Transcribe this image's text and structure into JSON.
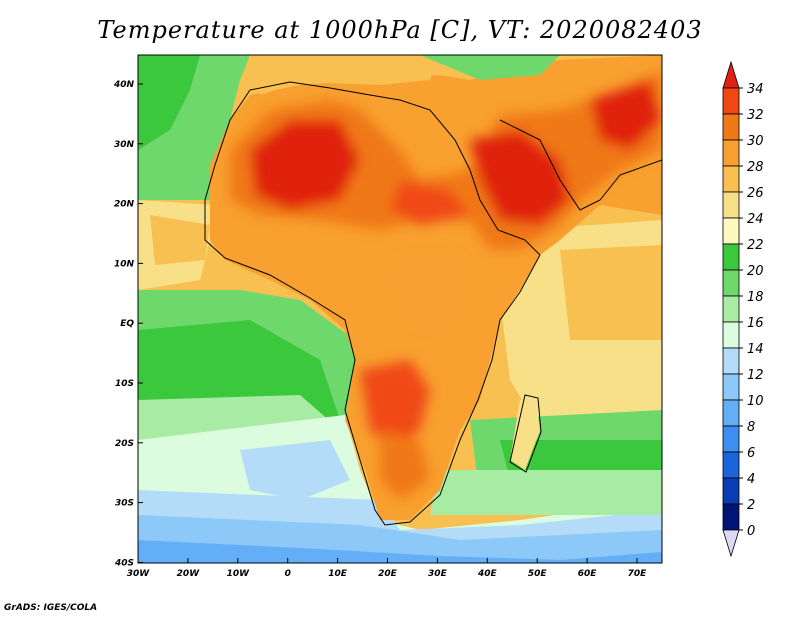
{
  "title": "Temperature at 1000hPa [C], VT: 2020082403",
  "credit": "GrADS: IGES/COLA",
  "x_ticks": [
    "30W",
    "20W",
    "10W",
    "0",
    "10E",
    "20E",
    "30E",
    "40E",
    "50E",
    "60E",
    "70E"
  ],
  "y_ticks": [
    "40N",
    "30N",
    "20N",
    "10N",
    "EQ",
    "10S",
    "20S",
    "30S",
    "40S"
  ],
  "colorbar": {
    "labels": [
      "34",
      "32",
      "30",
      "28",
      "26",
      "24",
      "22",
      "20",
      "18",
      "16",
      "14",
      "12",
      "10",
      "8",
      "6",
      "4",
      "2",
      "0"
    ],
    "colors": [
      "#e02010",
      "#f04812",
      "#f07816",
      "#f8a030",
      "#f8c050",
      "#f8e088",
      "#fff8c0",
      "#3cc83c",
      "#6ed86c",
      "#a8eca4",
      "#dcfce0",
      "#b4dcf8",
      "#8cc8f8",
      "#64aef8",
      "#3c8ef0",
      "#1c64dc",
      "#0a3cb4",
      "#001478",
      "#dcd8f8"
    ]
  },
  "map": {
    "extent": {
      "lon": [
        -30,
        75
      ],
      "lat": [
        -40,
        45
      ]
    },
    "fill_colors": {
      "ocean_warm": "#f8a030",
      "ocean_mid": "#f8c050",
      "ocean_yellow": "#f8e088",
      "green": "#6ed86c",
      "green_dark": "#3cc83c",
      "pale": "#dcfce0",
      "blue_light": "#b4dcf8",
      "blue": "#8cc8f8",
      "blue_deep": "#64aef8",
      "hot": "#e02010",
      "hot2": "#f04812",
      "warm": "#f07816"
    }
  }
}
